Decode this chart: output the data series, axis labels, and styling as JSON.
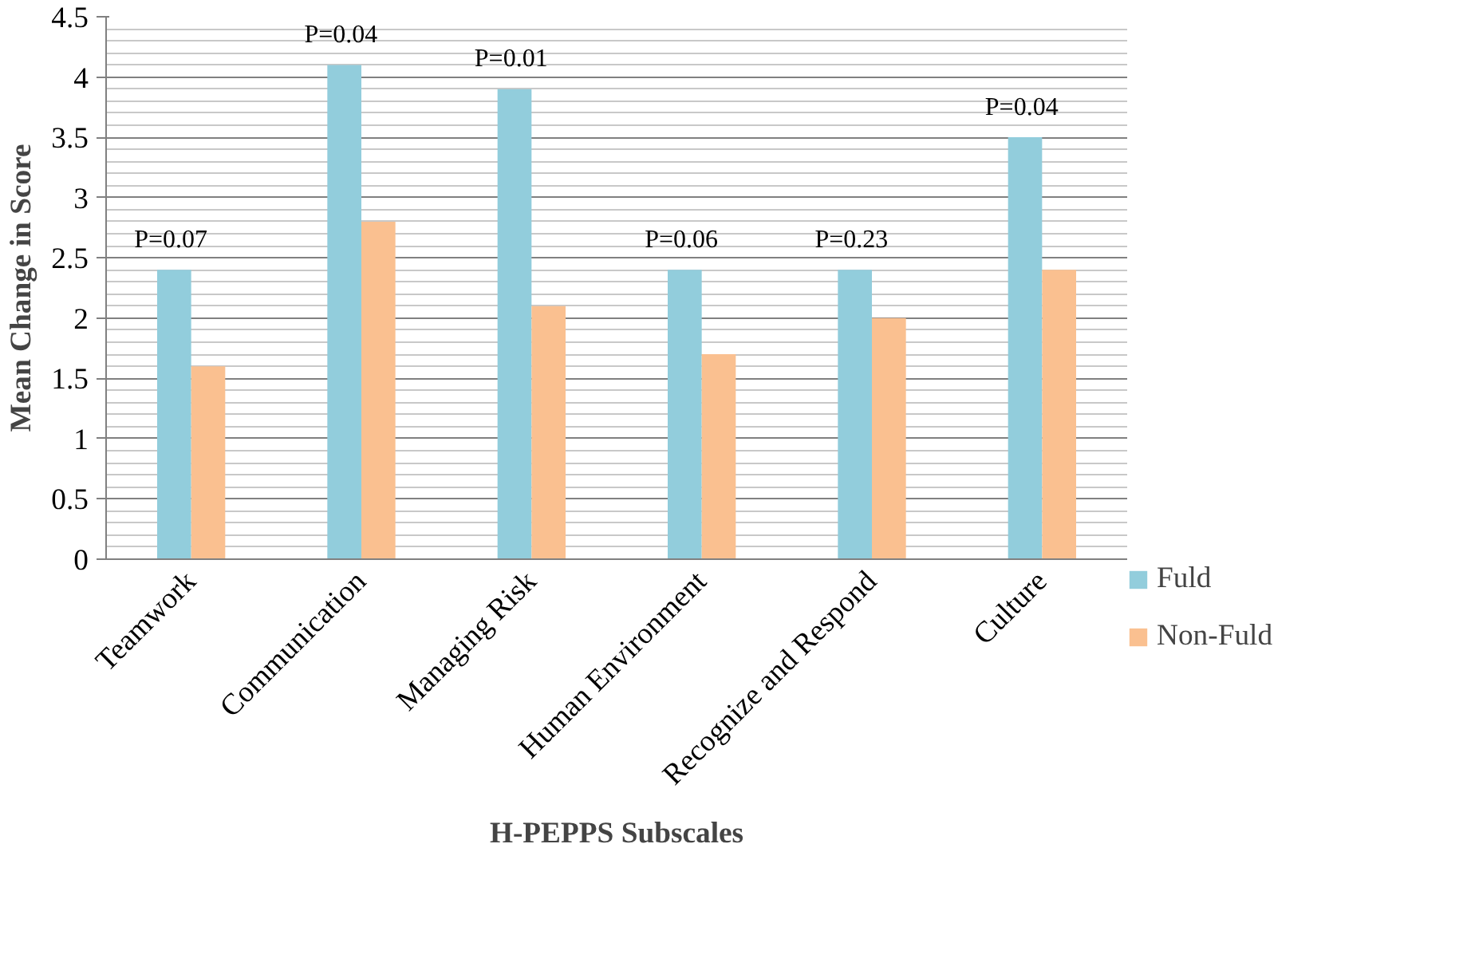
{
  "chart_data": {
    "type": "bar",
    "xlabel": "H-PEPPS Subscales",
    "ylabel": "Mean Change in Score",
    "categories": [
      "Teamwork",
      "Communication",
      "Managing Risk",
      "Human Environment",
      "Recognize and Respond",
      "Culture"
    ],
    "series": [
      {
        "name": "Fuld",
        "color": "#92cddc",
        "values": [
          2.4,
          4.1,
          3.9,
          2.4,
          2.4,
          3.5
        ]
      },
      {
        "name": "Non-Fuld",
        "color": "#fac090",
        "values": [
          1.6,
          2.8,
          2.1,
          1.7,
          2.0,
          2.4
        ]
      }
    ],
    "ylim": [
      0,
      4.5
    ],
    "yticks": [
      0,
      0.5,
      1,
      1.5,
      2,
      2.5,
      3,
      3.5,
      4,
      4.5
    ],
    "grid": "y",
    "legend": "right",
    "annotations": [
      "P=0.07",
      "P=0.04",
      "P=0.01",
      "P=0.06",
      "P=0.23",
      "P=0.04"
    ]
  }
}
